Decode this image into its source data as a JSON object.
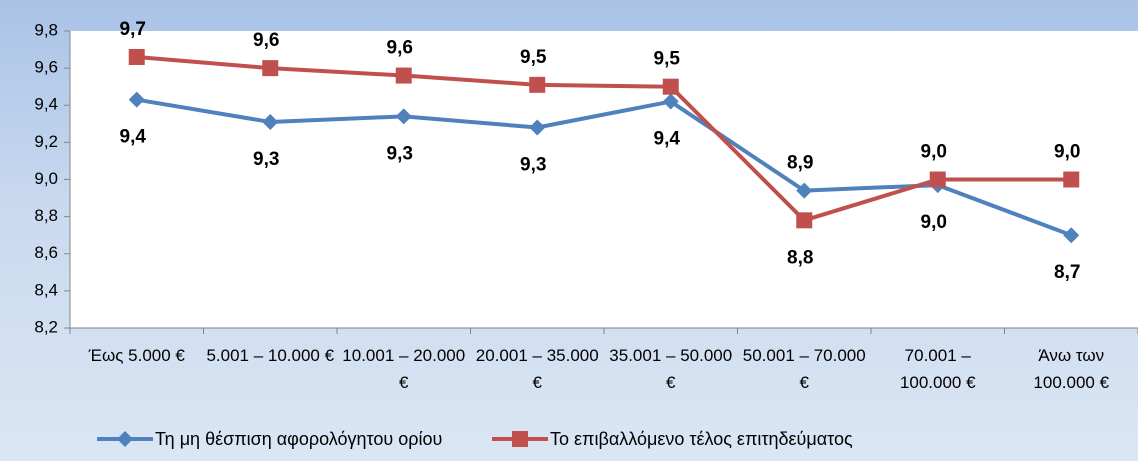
{
  "chart_data": {
    "type": "line",
    "categories": [
      "Έως 5.000 €",
      "5.001 – 10.000 €",
      "10.001 – 20.000 €",
      "20.001 – 35.000 €",
      "35.001 – 50.000 €",
      "50.001 – 70.000 €",
      "70.001 – 100.000 €",
      "Άνω των 100.000 €"
    ],
    "series": [
      {
        "name": "Τη μη θέσπιση αφορολόγητου ορίου",
        "color": "#4f81bd",
        "marker": "diamond",
        "values": [
          9.43,
          9.31,
          9.34,
          9.28,
          9.42,
          8.94,
          8.97,
          8.7
        ],
        "value_labels": [
          "9,4",
          "9,3",
          "9,3",
          "9,3",
          "9,4",
          "8,9",
          "9,0",
          "8,7"
        ]
      },
      {
        "name": "Το επιβαλλόμενο τέλος επιτηδεύματος",
        "color": "#c0504d",
        "marker": "square",
        "values": [
          9.66,
          9.6,
          9.56,
          9.51,
          9.5,
          8.78,
          9.0,
          9.0
        ],
        "value_labels": [
          "9,7",
          "9,6",
          "9,6",
          "9,5",
          "9,5",
          "8,8",
          "9,0",
          "9,0"
        ]
      }
    ],
    "ylim": [
      8.2,
      9.8
    ],
    "yticks": [
      {
        "value": 8.2,
        "label": "8,2"
      },
      {
        "value": 8.4,
        "label": "8,4"
      },
      {
        "value": 8.6,
        "label": "8,6"
      },
      {
        "value": 8.8,
        "label": "8,8"
      },
      {
        "value": 9.0,
        "label": "9,0"
      },
      {
        "value": 9.2,
        "label": "9,2"
      },
      {
        "value": 9.4,
        "label": "9,4"
      },
      {
        "value": 9.6,
        "label": "9,6"
      },
      {
        "value": 9.8,
        "label": "9,8"
      }
    ],
    "grid": false,
    "legend": "bottom"
  }
}
